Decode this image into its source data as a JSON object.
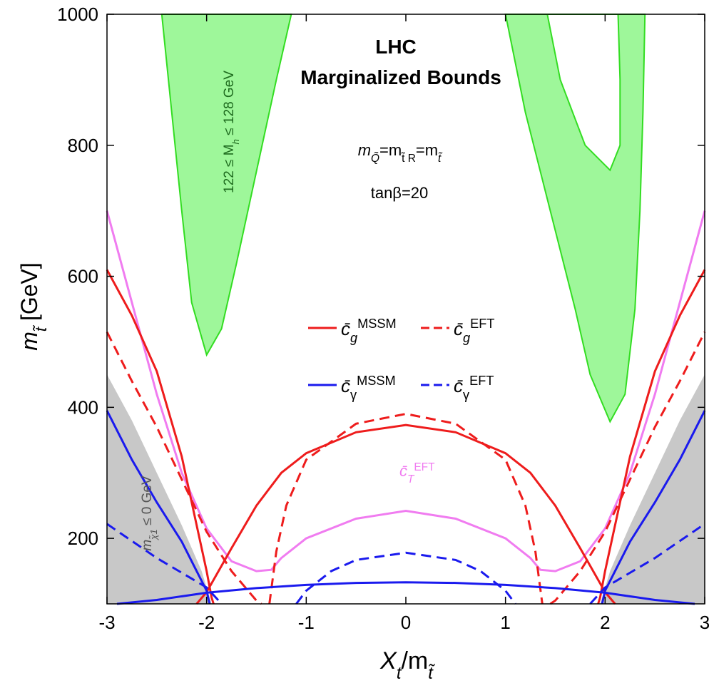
{
  "chart_data": {
    "type": "line",
    "title": [
      "LHC",
      "Marginalized Bounds"
    ],
    "xlabel": [
      {
        "text": "X"
      },
      {
        "text": "t",
        "shift": "sub"
      },
      {
        "text": "/m"
      },
      {
        "text": "t̃",
        "shift": "sub"
      }
    ],
    "ylabel": [
      {
        "text": "m"
      },
      {
        "text": "t̃",
        "shift": "sub"
      },
      {
        "text": " [GeV]"
      }
    ],
    "xlim": [
      -3,
      3
    ],
    "ylim": [
      100,
      1000
    ],
    "xticks": [
      -3,
      -2,
      -1,
      0,
      1,
      2,
      3
    ],
    "yticks": [
      200,
      400,
      600,
      800,
      1000
    ],
    "grid": false,
    "regions": [
      {
        "color": "#9ef79a",
        "edge": "#33dd22",
        "x": [
          -2.45,
          -2.35,
          -2.25,
          -2.15,
          -2.0,
          -1.85,
          -1.7,
          -1.5,
          -1.3,
          -1.15
        ],
        "values": [
          1000,
          850,
          700,
          560,
          480,
          520,
          620,
          760,
          900,
          1000
        ]
      },
      {
        "color": "#9ef79a",
        "edge": "#33dd22",
        "x": [
          1.0,
          1.2,
          1.45,
          1.7,
          1.85,
          2.05,
          2.2,
          2.3,
          2.35,
          2.38,
          2.4,
          2.13,
          2.13,
          2.15,
          2.15,
          2.05,
          1.8,
          1.55,
          1.42
        ],
        "values": [
          1000,
          850,
          700,
          550,
          450,
          378,
          420,
          550,
          700,
          850,
          1000,
          null,
          1000,
          900,
          800,
          762,
          800,
          900,
          1000
        ]
      },
      {
        "color": "#c8c8c8",
        "edge": "none",
        "x": [
          -3,
          -2.75,
          -2.5,
          -2.25,
          -2.05,
          -1.95,
          -3
        ],
        "values": [
          450,
          380,
          300,
          220,
          150,
          100,
          100
        ]
      },
      {
        "color": "#c8c8c8",
        "edge": "none",
        "x": [
          3,
          2.75,
          2.5,
          2.25,
          2.05,
          1.95,
          3
        ],
        "values": [
          450,
          380,
          300,
          220,
          150,
          100,
          100
        ]
      }
    ],
    "series": [
      {
        "name": [
          {
            "text": "c̄"
          },
          {
            "text": "T",
            "shift": "sub"
          },
          {
            "text": "EFT",
            "shift": "sup"
          }
        ],
        "legend": false,
        "color": "#f07cf0",
        "dash": false,
        "x": [
          -3,
          -2.75,
          -2.5,
          -2.25,
          -2,
          -1.75,
          -1.5,
          -1.35,
          -1.25,
          -1,
          -0.5,
          0,
          0.5,
          1,
          1.25,
          1.35,
          1.5,
          1.75,
          2,
          2.25,
          2.5,
          2.75,
          3
        ],
        "values": [
          700,
          560,
          420,
          300,
          215,
          165,
          150,
          152,
          170,
          200,
          230,
          242,
          230,
          200,
          170,
          152,
          150,
          165,
          215,
          300,
          420,
          560,
          700
        ]
      },
      {
        "name": [
          {
            "text": "c̄"
          },
          {
            "text": "g",
            "shift": "sub"
          },
          {
            "text": "MSSM",
            "shift": "sup"
          }
        ],
        "legend": true,
        "color": "#ee1c1c",
        "dash": false,
        "x": [
          -3,
          -2.75,
          -2.5,
          -2.25,
          -2.1,
          -2,
          -1.95,
          -1.93,
          -1.93,
          -2.1,
          -2,
          -1.75,
          -1.5,
          -1.25,
          -1,
          -0.5,
          0,
          0.5,
          1,
          1.25,
          1.5,
          1.75,
          2,
          2.1,
          2.1,
          1.93,
          1.95,
          2,
          2.1,
          2.25,
          2.5,
          2.75,
          3
        ],
        "values": [
          610,
          540,
          455,
          325,
          220,
          150,
          110,
          100,
          null,
          100,
          118,
          185,
          250,
          300,
          330,
          362,
          373,
          362,
          330,
          300,
          250,
          185,
          118,
          100,
          null,
          100,
          110,
          150,
          220,
          325,
          455,
          540,
          610
        ]
      },
      {
        "name": [
          {
            "text": "c̄"
          },
          {
            "text": "g",
            "shift": "sub"
          },
          {
            "text": "EFT",
            "shift": "sup"
          }
        ],
        "legend": true,
        "color": "#ee1c1c",
        "dash": true,
        "x": [
          -3,
          -2.75,
          -2.5,
          -2.25,
          -2,
          -1.75,
          -1.5,
          -1.45,
          -1.45,
          -1.37,
          -1.3,
          -1.2,
          -1,
          -0.5,
          0,
          0.5,
          1,
          1.2,
          1.3,
          1.37,
          1.37,
          1.45,
          1.5,
          1.75,
          2,
          2.25,
          2.5,
          2.75,
          3
        ],
        "values": [
          515,
          440,
          370,
          290,
          210,
          150,
          105,
          100,
          null,
          100,
          180,
          250,
          320,
          375,
          390,
          375,
          320,
          250,
          180,
          100,
          null,
          100,
          105,
          150,
          210,
          290,
          370,
          440,
          515
        ]
      },
      {
        "name": [
          {
            "text": "c̄"
          },
          {
            "text": "γ",
            "shift": "sub"
          },
          {
            "text": "MSSM",
            "shift": "sup"
          }
        ],
        "legend": true,
        "color": "#1a1aee",
        "dash": false,
        "x": [
          -3,
          -2.75,
          -2.5,
          -2.25,
          -2.1,
          -2,
          -1.97,
          -1.97,
          -2.9,
          -2.5,
          -2,
          -1.5,
          -1,
          -0.5,
          0,
          0.5,
          1,
          1.5,
          2,
          2.5,
          2.9,
          2.9,
          1.97,
          2,
          2.1,
          2.25,
          2.5,
          2.75,
          3
        ],
        "values": [
          395,
          320,
          255,
          195,
          150,
          120,
          100,
          null,
          100,
          106,
          117,
          124,
          129,
          132,
          133,
          132,
          129,
          124,
          117,
          106,
          100,
          null,
          100,
          120,
          150,
          195,
          255,
          320,
          395
        ]
      },
      {
        "name": [
          {
            "text": "c̄"
          },
          {
            "text": "γ",
            "shift": "sub"
          },
          {
            "text": "EFT",
            "shift": "sup"
          }
        ],
        "legend": true,
        "color": "#1a1aee",
        "dash": true,
        "x": [
          -3,
          -2.5,
          -2,
          -1.85,
          -1.85,
          -1.1,
          -1,
          -0.75,
          -0.5,
          0,
          0.5,
          0.75,
          1,
          1.1,
          1.1,
          1.85,
          2,
          2.5,
          3
        ],
        "values": [
          222,
          170,
          125,
          100,
          null,
          100,
          120,
          150,
          167,
          178,
          167,
          150,
          120,
          100,
          null,
          100,
          125,
          170,
          222
        ]
      }
    ],
    "annotations": [
      {
        "color": "#000000",
        "parts": [
          {
            "text": "m"
          },
          {
            "text": "Q̃",
            "shift": "sub"
          },
          {
            "text": "=m"
          },
          {
            "text": "t̃ R",
            "shift": "sub"
          },
          {
            "text": "=m"
          },
          {
            "text": "t̃",
            "shift": "sub"
          }
        ]
      },
      {
        "color": "#000000",
        "parts": [
          {
            "text": "tanβ=20"
          }
        ]
      },
      {
        "color": "#1e6b1e",
        "parts": [
          {
            "text": "122 ≤ M"
          },
          {
            "text": "h",
            "shift": "sub"
          },
          {
            "text": " ≤ 128 GeV"
          }
        ]
      },
      {
        "color": "#555555",
        "parts": [
          {
            "text": "m"
          },
          {
            "text": "χ̃1",
            "shift": "sub"
          },
          {
            "text": " ≤ 0 GeV"
          }
        ]
      }
    ]
  }
}
